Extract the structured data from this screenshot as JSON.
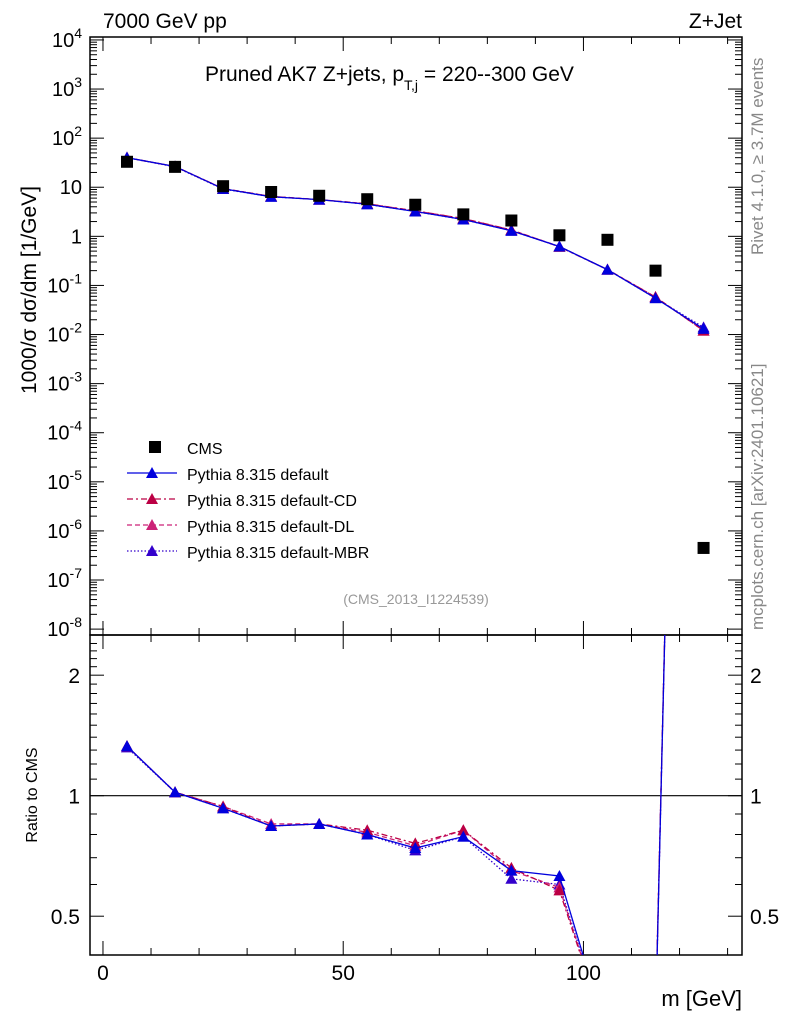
{
  "chart_data": {
    "type": "line",
    "header_left": "7000 GeV pp",
    "header_right": "Z+Jet",
    "title": "Pruned AK7 Z+jets, p",
    "title_sub": "T,j",
    "title_rest": " = 220--300 GeV",
    "ylabel": "1000/σ  dσ/dm [1/GeV]",
    "ratio_ylabel": "Ratio to CMS",
    "xlabel": "m [GeV]",
    "side_right_top": "Rivet 4.1.0, ≥ 3.7M events",
    "side_right_bottom": "mcplots.cern.ch [arXiv:2401.10621]",
    "analysis_id": "(CMS_2013_I1224539)",
    "xlim": [
      -2.7,
      133
    ],
    "ylim_log10": [
      -8.12,
      4.06
    ],
    "ratio_ylim": [
      0.4,
      2.52
    ],
    "x_ticks": [
      "0",
      "50",
      "100"
    ],
    "x_tick_values": [
      0,
      50,
      100
    ],
    "y_tick_labels": [
      "10^4",
      "10^3",
      "10^2",
      "10",
      "1",
      "10^-1",
      "10^-2",
      "10^-3",
      "10^-4",
      "10^-5",
      "10^-6",
      "10^-7",
      "10^-8"
    ],
    "y_tick_exponents": [
      4,
      3,
      2,
      1,
      0,
      -1,
      -2,
      -3,
      -4,
      -5,
      -6,
      -7,
      -8
    ],
    "ratio_ticks": [
      "0.5",
      "1",
      "2"
    ],
    "ratio_tick_values": [
      0.5,
      1,
      2
    ],
    "x": [
      5,
      15,
      25,
      35,
      45,
      55,
      65,
      75,
      85,
      95,
      105,
      115,
      125
    ],
    "data": {
      "name": "CMS",
      "color": "#000000",
      "values": [
        33,
        26,
        10.5,
        8,
        6.7,
        5.7,
        4.4,
        2.8,
        2.1,
        1.05,
        0.85,
        0.2,
        4.5e-07
      ]
    },
    "series": [
      {
        "name": "Pythia 8.315 default",
        "color": "#0000dd",
        "dash": "",
        "values": [
          40,
          26.5,
          9.3,
          6.4,
          5.6,
          4.5,
          3.2,
          2.2,
          1.3,
          0.62,
          0.21,
          0.055,
          0.013
        ],
        "ratio": [
          1.33,
          1.02,
          0.93,
          0.84,
          0.85,
          0.8,
          0.74,
          0.79,
          0.65,
          0.63,
          0.25,
          0.27,
          29000
        ]
      },
      {
        "name": "Pythia 8.315 default-CD",
        "color": "#bb0044",
        "dash": "6,3,2,3",
        "values": [
          40,
          26.5,
          9.4,
          6.5,
          5.6,
          4.6,
          3.3,
          2.3,
          1.35,
          0.61,
          0.21,
          0.058,
          0.012
        ],
        "ratio": [
          1.33,
          1.02,
          0.94,
          0.84,
          0.85,
          0.82,
          0.76,
          0.82,
          0.66,
          0.58,
          0.25,
          0.28,
          27000
        ]
      },
      {
        "name": "Pythia 8.315 default-DL",
        "color": "#cc2277",
        "dash": "5,3",
        "values": [
          40,
          26.5,
          9.4,
          6.5,
          5.6,
          4.6,
          3.3,
          2.3,
          1.35,
          0.62,
          0.21,
          0.058,
          0.012
        ],
        "ratio": [
          1.33,
          1.02,
          0.94,
          0.85,
          0.85,
          0.81,
          0.75,
          0.82,
          0.65,
          0.59,
          0.25,
          0.28,
          27000
        ]
      },
      {
        "name": "Pythia 8.315 default-MBR",
        "color": "#3300cc",
        "dash": "1.5,2",
        "values": [
          40,
          26,
          9.2,
          6.4,
          5.6,
          4.5,
          3.2,
          2.2,
          1.3,
          0.62,
          0.21,
          0.055,
          0.014
        ],
        "ratio": [
          1.32,
          1.02,
          0.93,
          0.84,
          0.85,
          0.8,
          0.73,
          0.79,
          0.62,
          0.6,
          0.25,
          0.27,
          30000
        ]
      }
    ],
    "legend_placement": "lower-left"
  }
}
